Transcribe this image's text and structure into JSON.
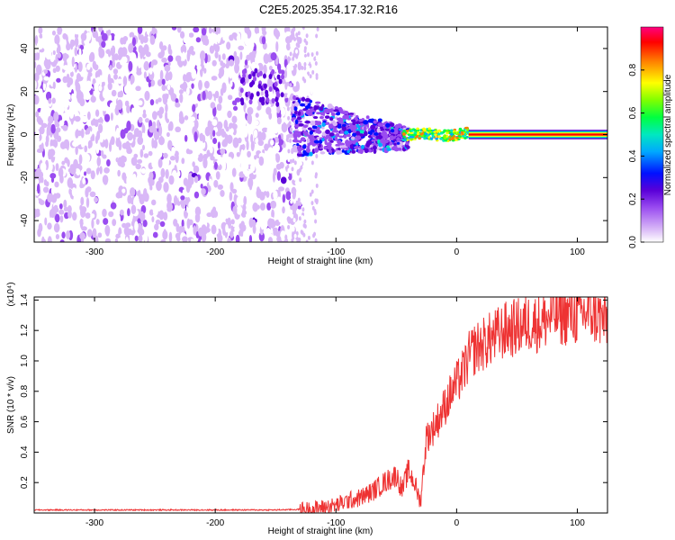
{
  "title": "C2E5.2025.354.17.32.R16",
  "chart_data": [
    {
      "type": "heatmap",
      "xlabel": "Height of straight line (km)",
      "ylabel": "Frequency (Hz)",
      "xlim": [
        -350,
        125
      ],
      "ylim": [
        -50,
        50
      ],
      "xticks": [
        -300,
        -200,
        -100,
        0,
        100
      ],
      "yticks": [
        -40,
        -20,
        0,
        20,
        40
      ],
      "colorbar": {
        "label": "Normalized spectral amplitude",
        "range": [
          0,
          1
        ],
        "ticks": [
          0.0,
          0.2,
          0.4,
          0.6,
          0.8
        ],
        "colors": [
          "#ffffff",
          "#c9a6f5",
          "#8a2be2",
          "#5a00d8",
          "#0000ff",
          "#00c8ff",
          "#00ff80",
          "#80ff00",
          "#ffff00",
          "#ff8000",
          "#ff0000",
          "#ff0080"
        ]
      },
      "regions": [
        {
          "x_range": [
            -350,
            -130
          ],
          "freq_range": [
            -50,
            50
          ],
          "amplitude": "0.05-0.2 (broadband noise)"
        },
        {
          "x_range": [
            -175,
            -140
          ],
          "freq_range": [
            15,
            30
          ],
          "amplitude": "~0.2"
        },
        {
          "x_range": [
            -135,
            -40
          ],
          "freq_range": [
            -8,
            18
          ],
          "amplitude": "0.2-0.5"
        },
        {
          "x_range": [
            -40,
            10
          ],
          "freq_range": [
            -3,
            3
          ],
          "amplitude": "0.5-0.9"
        },
        {
          "x_range": [
            10,
            125
          ],
          "freq_range": [
            -1,
            1
          ],
          "amplitude": "~1.0"
        }
      ]
    },
    {
      "type": "line",
      "xlabel": "Height of straight line (km)",
      "ylabel": "SNR (10 * v/v)",
      "y_multiplier": "(x10⁴)",
      "xlim": [
        -350,
        125
      ],
      "ylim": [
        0,
        1.42
      ],
      "xticks": [
        -300,
        -200,
        -100,
        0,
        100
      ],
      "yticks": [
        0.2,
        0.4,
        0.6,
        0.8,
        1.0,
        1.2,
        1.4
      ],
      "series": [
        {
          "color": "#ee3333",
          "x": [
            -350,
            -300,
            -250,
            -200,
            -150,
            -120,
            -100,
            -90,
            -80,
            -70,
            -60,
            -50,
            -45,
            -40,
            -35,
            -30,
            -25,
            -20,
            -15,
            -10,
            -5,
            0,
            5,
            10,
            15,
            20,
            30,
            40,
            50,
            60,
            70,
            80,
            90,
            100,
            110,
            120,
            125
          ],
          "y": [
            0.02,
            0.02,
            0.02,
            0.02,
            0.02,
            0.025,
            0.05,
            0.08,
            0.1,
            0.14,
            0.2,
            0.25,
            0.15,
            0.28,
            0.2,
            0.07,
            0.5,
            0.55,
            0.62,
            0.7,
            0.78,
            0.85,
            0.92,
            1.02,
            1.08,
            1.1,
            1.15,
            1.2,
            1.22,
            1.25,
            1.25,
            1.3,
            1.3,
            1.3,
            1.32,
            1.28,
            1.25
          ]
        }
      ]
    }
  ]
}
